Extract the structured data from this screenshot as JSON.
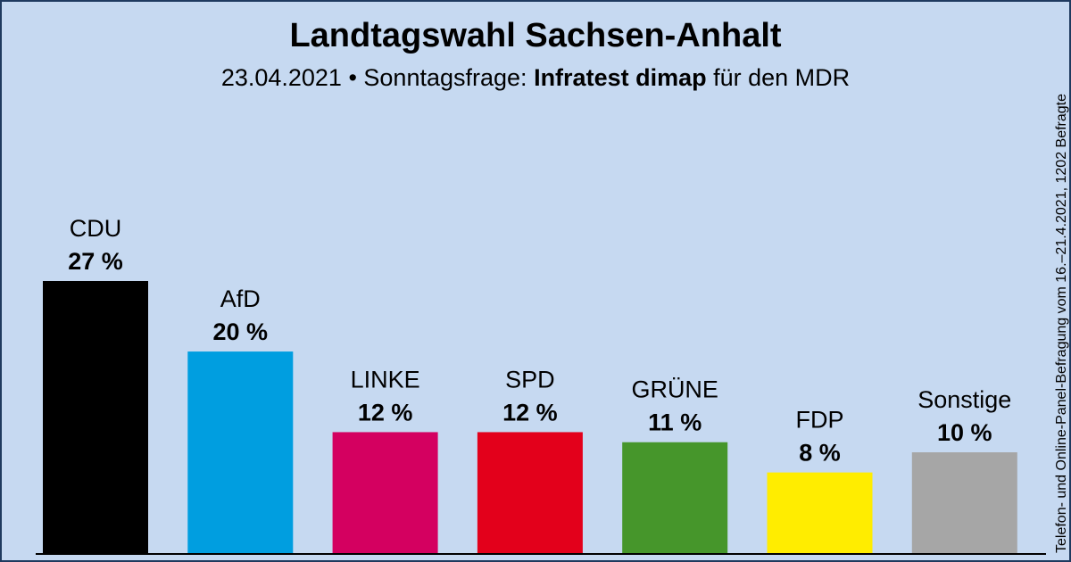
{
  "chart_data": {
    "type": "bar",
    "title": "Landtagswahl Sachsen-Anhalt",
    "subtitle": [
      "23.04.2021 • Sonntagsfrage:",
      "Infratest dimap",
      "für den MDR"
    ],
    "note": "Telefon- und Online-Panel-Befragung vom 16.–21.4.2021, 1202 Befragte",
    "categories": [
      "CDU",
      "AfD",
      "LINKE",
      "SPD",
      "GRÜNE",
      "FDP",
      "Sonstige"
    ],
    "values": [
      27,
      20,
      12,
      12,
      11,
      8,
      10
    ],
    "value_labels": [
      "27 %",
      "20 %",
      "12 %",
      "12 %",
      "11 %",
      "8 %",
      "10 %"
    ],
    "colors": [
      "#000000",
      "#009ee0",
      "#d40060",
      "#e3001b",
      "#46962b",
      "#ffed00",
      "#a6a6a6"
    ]
  }
}
